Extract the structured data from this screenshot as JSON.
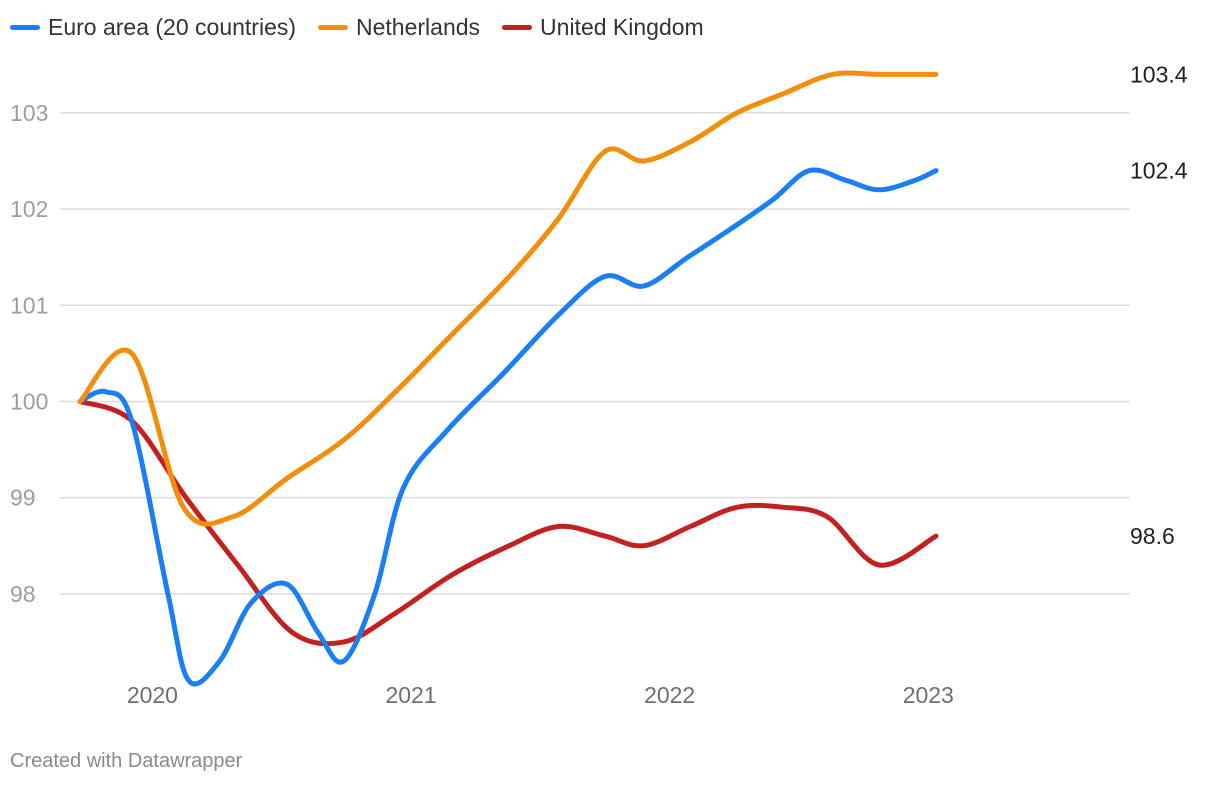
{
  "legend": [
    {
      "label": "Euro area (20 countries)",
      "color": "#1a7ef5"
    },
    {
      "label": "Netherlands",
      "color": "#f28e0c"
    },
    {
      "label": "United Kingdom",
      "color": "#c3211f"
    }
  ],
  "footer": "Created with Datawrapper",
  "chart_data": {
    "type": "line",
    "title": "",
    "xlabel": "",
    "ylabel": "",
    "xlim": [
      2019.72,
      2023.78
    ],
    "ylim": [
      97.0,
      103.55
    ],
    "y_ticks": [
      98,
      99,
      100,
      101,
      102,
      103
    ],
    "x_ticks": [
      2020,
      2021,
      2022,
      2023
    ],
    "grid": "horizontal",
    "legend_position": "top-left",
    "series": [
      {
        "name": "Euro area (20 countries)",
        "color": "#1a7ef5",
        "end_label": "102.4",
        "points": [
          [
            2019.72,
            100.0
          ],
          [
            2019.82,
            100.1
          ],
          [
            2019.92,
            99.8
          ],
          [
            2020.06,
            98.0
          ],
          [
            2020.14,
            97.1
          ],
          [
            2020.26,
            97.3
          ],
          [
            2020.38,
            97.9
          ],
          [
            2020.52,
            98.1
          ],
          [
            2020.64,
            97.6
          ],
          [
            2020.74,
            97.3
          ],
          [
            2020.86,
            98.0
          ],
          [
            2020.97,
            99.1
          ],
          [
            2021.14,
            99.7
          ],
          [
            2021.36,
            100.3
          ],
          [
            2021.57,
            100.9
          ],
          [
            2021.75,
            101.3
          ],
          [
            2021.9,
            101.2
          ],
          [
            2022.07,
            101.5
          ],
          [
            2022.24,
            101.8
          ],
          [
            2022.4,
            102.1
          ],
          [
            2022.54,
            102.4
          ],
          [
            2022.68,
            102.3
          ],
          [
            2022.81,
            102.2
          ],
          [
            2022.95,
            102.3
          ],
          [
            2023.03,
            102.4
          ]
        ]
      },
      {
        "name": "Netherlands",
        "color": "#f28e0c",
        "end_label": "103.4",
        "points": [
          [
            2019.72,
            100.0
          ],
          [
            2019.92,
            100.5
          ],
          [
            2020.12,
            98.9
          ],
          [
            2020.31,
            98.8
          ],
          [
            2020.52,
            99.2
          ],
          [
            2020.74,
            99.6
          ],
          [
            2020.94,
            100.1
          ],
          [
            2021.16,
            100.7
          ],
          [
            2021.38,
            101.3
          ],
          [
            2021.57,
            101.9
          ],
          [
            2021.75,
            102.6
          ],
          [
            2021.9,
            102.5
          ],
          [
            2022.08,
            102.7
          ],
          [
            2022.26,
            103.0
          ],
          [
            2022.44,
            103.2
          ],
          [
            2022.63,
            103.4
          ],
          [
            2022.81,
            103.4
          ],
          [
            2023.03,
            103.4
          ]
        ]
      },
      {
        "name": "United Kingdom",
        "color": "#c3211f",
        "end_label": "98.6",
        "points": [
          [
            2019.72,
            100.0
          ],
          [
            2019.92,
            99.8
          ],
          [
            2020.13,
            99.0
          ],
          [
            2020.33,
            98.3
          ],
          [
            2020.54,
            97.6
          ],
          [
            2020.74,
            97.5
          ],
          [
            2020.94,
            97.8
          ],
          [
            2021.16,
            98.2
          ],
          [
            2021.38,
            98.5
          ],
          [
            2021.57,
            98.7
          ],
          [
            2021.75,
            98.6
          ],
          [
            2021.9,
            98.5
          ],
          [
            2022.08,
            98.7
          ],
          [
            2022.26,
            98.9
          ],
          [
            2022.44,
            98.9
          ],
          [
            2022.61,
            98.8
          ],
          [
            2022.81,
            98.3
          ],
          [
            2023.03,
            98.6
          ]
        ]
      }
    ]
  }
}
